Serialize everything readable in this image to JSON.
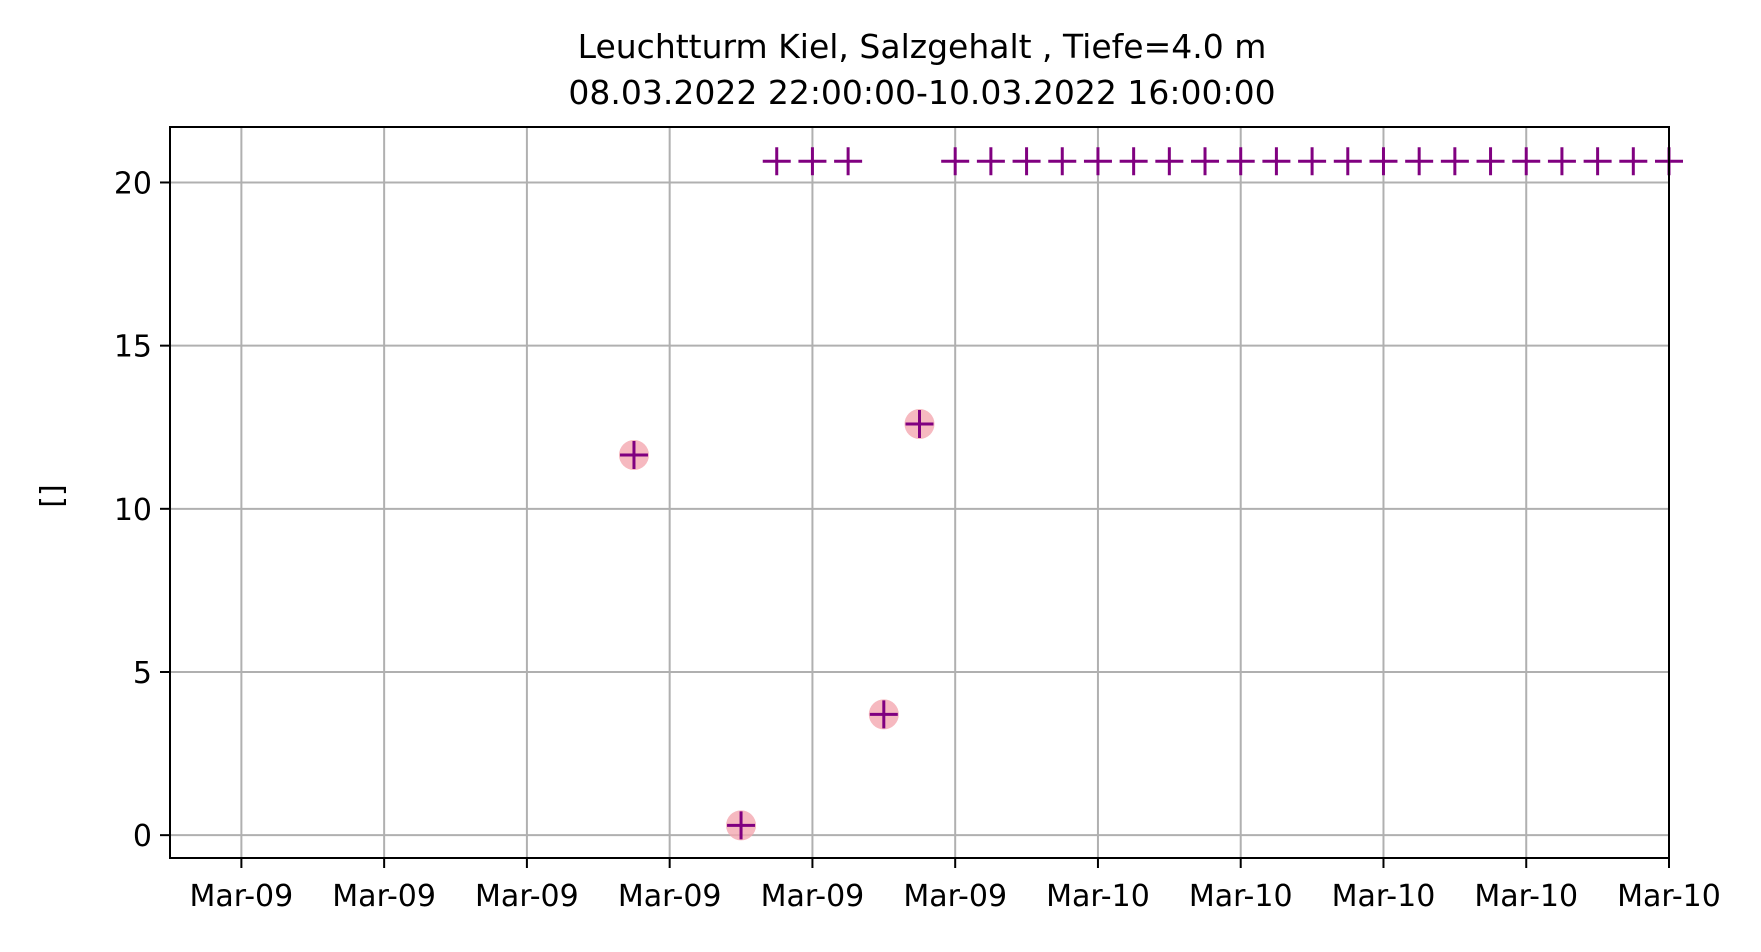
{
  "chart_data": {
    "type": "scatter",
    "title": "Leuchtturm Kiel, Salzgehalt , Tiefe=4.0 m",
    "subtitle": "08.03.2022 22:00:00-10.03.2022 16:00:00",
    "xlabel": "",
    "ylabel": "[]",
    "x_range": [
      "2022-03-08 22:00",
      "2022-03-10 16:00"
    ],
    "ylim": [
      -0.7,
      21.7
    ],
    "yticks": [
      0,
      5,
      10,
      15,
      20
    ],
    "xticks": [
      {
        "t": "2022-03-09 00:00",
        "label": "Mar-09"
      },
      {
        "t": "2022-03-09 04:00",
        "label": "Mar-09"
      },
      {
        "t": "2022-03-09 08:00",
        "label": "Mar-09"
      },
      {
        "t": "2022-03-09 12:00",
        "label": "Mar-09"
      },
      {
        "t": "2022-03-09 16:00",
        "label": "Mar-09"
      },
      {
        "t": "2022-03-09 20:00",
        "label": "Mar-09"
      },
      {
        "t": "2022-03-10 00:00",
        "label": "Mar-10"
      },
      {
        "t": "2022-03-10 04:00",
        "label": "Mar-10"
      },
      {
        "t": "2022-03-10 08:00",
        "label": "Mar-10"
      },
      {
        "t": "2022-03-10 12:00",
        "label": "Mar-10"
      },
      {
        "t": "2022-03-10 16:00",
        "label": "Mar-10"
      }
    ],
    "grid": true,
    "series": [
      {
        "marker": "plus",
        "color": "#800080",
        "points": [
          {
            "t": "2022-03-09 11:00",
            "y": 11.65
          },
          {
            "t": "2022-03-09 14:00",
            "y": 0.3
          },
          {
            "t": "2022-03-09 15:00",
            "y": 20.65
          },
          {
            "t": "2022-03-09 16:00",
            "y": 20.65
          },
          {
            "t": "2022-03-09 17:00",
            "y": 20.65
          },
          {
            "t": "2022-03-09 18:00",
            "y": 3.7
          },
          {
            "t": "2022-03-09 19:00",
            "y": 12.6
          },
          {
            "t": "2022-03-09 20:00",
            "y": 20.65
          },
          {
            "t": "2022-03-09 21:00",
            "y": 20.65
          },
          {
            "t": "2022-03-09 22:00",
            "y": 20.65
          },
          {
            "t": "2022-03-09 23:00",
            "y": 20.65
          },
          {
            "t": "2022-03-10 00:00",
            "y": 20.65
          },
          {
            "t": "2022-03-10 01:00",
            "y": 20.65
          },
          {
            "t": "2022-03-10 02:00",
            "y": 20.65
          },
          {
            "t": "2022-03-10 03:00",
            "y": 20.65
          },
          {
            "t": "2022-03-10 04:00",
            "y": 20.65
          },
          {
            "t": "2022-03-10 05:00",
            "y": 20.65
          },
          {
            "t": "2022-03-10 06:00",
            "y": 20.65
          },
          {
            "t": "2022-03-10 07:00",
            "y": 20.65
          },
          {
            "t": "2022-03-10 08:00",
            "y": 20.65
          },
          {
            "t": "2022-03-10 09:00",
            "y": 20.65
          },
          {
            "t": "2022-03-10 10:00",
            "y": 20.65
          },
          {
            "t": "2022-03-10 11:00",
            "y": 20.65
          },
          {
            "t": "2022-03-10 12:00",
            "y": 20.65
          },
          {
            "t": "2022-03-10 13:00",
            "y": 20.65
          },
          {
            "t": "2022-03-10 14:00",
            "y": 20.65
          },
          {
            "t": "2022-03-10 15:00",
            "y": 20.65
          },
          {
            "t": "2022-03-10 16:00",
            "y": 20.65
          }
        ]
      },
      {
        "marker": "circle",
        "color": "#f4a8b0",
        "points": [
          {
            "t": "2022-03-09 11:00",
            "y": 11.65
          },
          {
            "t": "2022-03-09 14:00",
            "y": 0.3
          },
          {
            "t": "2022-03-09 18:00",
            "y": 3.7
          },
          {
            "t": "2022-03-09 19:00",
            "y": 12.6
          }
        ]
      }
    ]
  }
}
